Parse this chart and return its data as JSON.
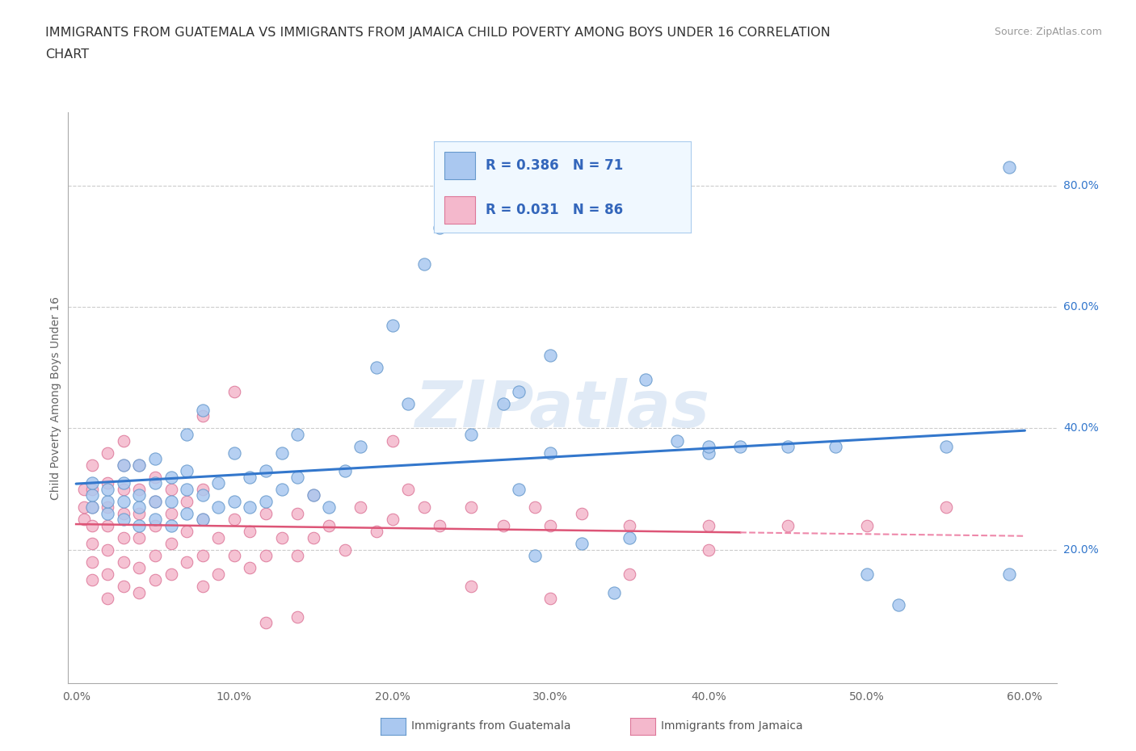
{
  "title_line1": "IMMIGRANTS FROM GUATEMALA VS IMMIGRANTS FROM JAMAICA CHILD POVERTY AMONG BOYS UNDER 16 CORRELATION",
  "title_line2": "CHART",
  "source_text": "Source: ZipAtlas.com",
  "ylabel": "Child Poverty Among Boys Under 16",
  "xlim": [
    -0.005,
    0.62
  ],
  "ylim": [
    -0.02,
    0.92
  ],
  "xtick_vals": [
    0.0,
    0.1,
    0.2,
    0.3,
    0.4,
    0.5,
    0.6
  ],
  "xtick_labels": [
    "0.0%",
    "10.0%",
    "20.0%",
    "30.0%",
    "40.0%",
    "50.0%",
    "60.0%"
  ],
  "ytick_vals_right": [
    0.2,
    0.4,
    0.6,
    0.8
  ],
  "ytick_labels_right": [
    "20.0%",
    "40.0%",
    "60.0%",
    "80.0%"
  ],
  "guatemala_color": "#aac8f0",
  "guatemala_edge": "#6699cc",
  "jamaica_color": "#f4b8cc",
  "jamaica_edge": "#dd7799",
  "line_blue": "#3377cc",
  "line_pink": "#dd5577",
  "line_pink_dash": "#ee88aa",
  "watermark": "ZIPatlas",
  "watermark_color": "#ccddf0",
  "legend_text_color": "#3366bb",
  "legend_bg": "#f0f8ff",
  "legend_border": "#aaccee",
  "guatemala_R": 0.386,
  "guatemala_N": 71,
  "jamaica_R": 0.031,
  "jamaica_N": 86,
  "guatemala_scatter_x": [
    0.01,
    0.01,
    0.01,
    0.02,
    0.02,
    0.02,
    0.03,
    0.03,
    0.03,
    0.03,
    0.04,
    0.04,
    0.04,
    0.04,
    0.05,
    0.05,
    0.05,
    0.05,
    0.06,
    0.06,
    0.06,
    0.07,
    0.07,
    0.07,
    0.07,
    0.08,
    0.08,
    0.08,
    0.09,
    0.09,
    0.1,
    0.1,
    0.11,
    0.11,
    0.12,
    0.12,
    0.13,
    0.13,
    0.14,
    0.14,
    0.15,
    0.16,
    0.17,
    0.18,
    0.19,
    0.2,
    0.21,
    0.22,
    0.23,
    0.25,
    0.27,
    0.28,
    0.29,
    0.3,
    0.32,
    0.34,
    0.35,
    0.36,
    0.38,
    0.4,
    0.28,
    0.3,
    0.4,
    0.42,
    0.45,
    0.48,
    0.5,
    0.52,
    0.55,
    0.59,
    0.59
  ],
  "guatemala_scatter_y": [
    0.27,
    0.29,
    0.31,
    0.26,
    0.28,
    0.3,
    0.25,
    0.28,
    0.31,
    0.34,
    0.24,
    0.27,
    0.29,
    0.34,
    0.25,
    0.28,
    0.31,
    0.35,
    0.24,
    0.28,
    0.32,
    0.26,
    0.3,
    0.33,
    0.39,
    0.25,
    0.29,
    0.43,
    0.27,
    0.31,
    0.28,
    0.36,
    0.27,
    0.32,
    0.28,
    0.33,
    0.3,
    0.36,
    0.32,
    0.39,
    0.29,
    0.27,
    0.33,
    0.37,
    0.5,
    0.57,
    0.44,
    0.67,
    0.73,
    0.39,
    0.44,
    0.3,
    0.19,
    0.36,
    0.21,
    0.13,
    0.22,
    0.48,
    0.38,
    0.36,
    0.46,
    0.52,
    0.37,
    0.37,
    0.37,
    0.37,
    0.16,
    0.11,
    0.37,
    0.16,
    0.83
  ],
  "jamaica_scatter_x": [
    0.005,
    0.005,
    0.005,
    0.01,
    0.01,
    0.01,
    0.01,
    0.01,
    0.01,
    0.01,
    0.02,
    0.02,
    0.02,
    0.02,
    0.02,
    0.02,
    0.02,
    0.03,
    0.03,
    0.03,
    0.03,
    0.03,
    0.03,
    0.03,
    0.04,
    0.04,
    0.04,
    0.04,
    0.04,
    0.04,
    0.05,
    0.05,
    0.05,
    0.05,
    0.05,
    0.06,
    0.06,
    0.06,
    0.06,
    0.07,
    0.07,
    0.07,
    0.08,
    0.08,
    0.08,
    0.08,
    0.09,
    0.09,
    0.1,
    0.1,
    0.11,
    0.11,
    0.12,
    0.12,
    0.13,
    0.14,
    0.14,
    0.15,
    0.15,
    0.16,
    0.17,
    0.18,
    0.19,
    0.2,
    0.21,
    0.22,
    0.23,
    0.25,
    0.27,
    0.29,
    0.3,
    0.32,
    0.35,
    0.4,
    0.45,
    0.5,
    0.2,
    0.25,
    0.14,
    0.3,
    0.35,
    0.4,
    0.55,
    0.08,
    0.1,
    0.12
  ],
  "jamaica_scatter_y": [
    0.25,
    0.27,
    0.3,
    0.15,
    0.18,
    0.21,
    0.24,
    0.27,
    0.3,
    0.34,
    0.12,
    0.16,
    0.2,
    0.24,
    0.27,
    0.31,
    0.36,
    0.14,
    0.18,
    0.22,
    0.26,
    0.3,
    0.34,
    0.38,
    0.13,
    0.17,
    0.22,
    0.26,
    0.3,
    0.34,
    0.15,
    0.19,
    0.24,
    0.28,
    0.32,
    0.16,
    0.21,
    0.26,
    0.3,
    0.18,
    0.23,
    0.28,
    0.14,
    0.19,
    0.25,
    0.3,
    0.16,
    0.22,
    0.19,
    0.25,
    0.17,
    0.23,
    0.19,
    0.26,
    0.22,
    0.19,
    0.26,
    0.22,
    0.29,
    0.24,
    0.2,
    0.27,
    0.23,
    0.25,
    0.3,
    0.27,
    0.24,
    0.27,
    0.24,
    0.27,
    0.24,
    0.26,
    0.24,
    0.24,
    0.24,
    0.24,
    0.38,
    0.14,
    0.09,
    0.12,
    0.16,
    0.2,
    0.27,
    0.42,
    0.46,
    0.08
  ]
}
